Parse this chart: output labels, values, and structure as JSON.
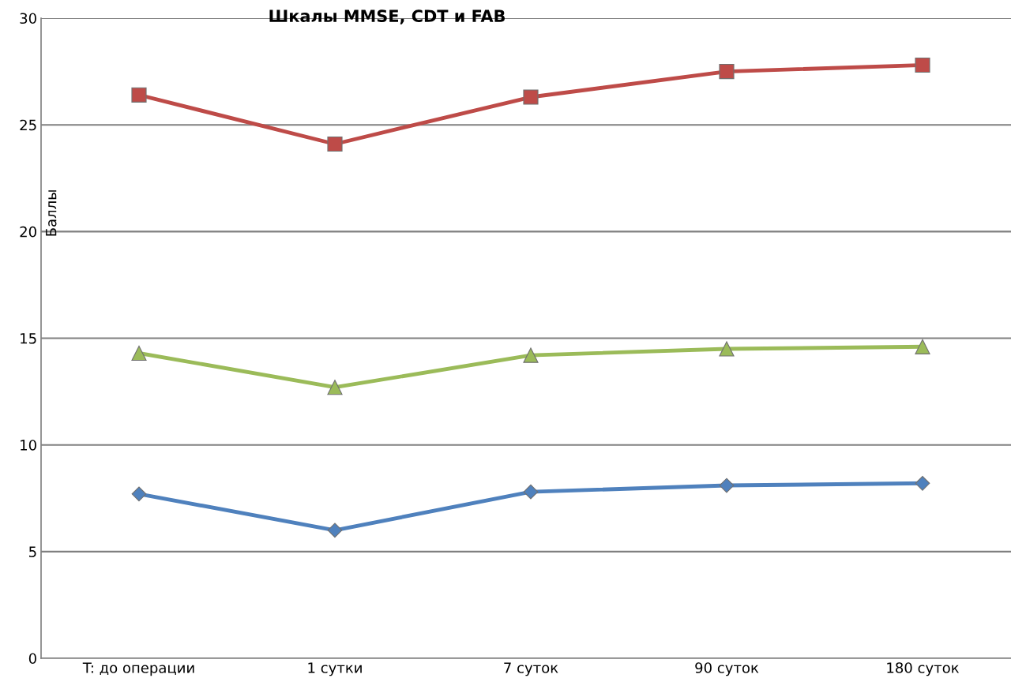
{
  "chart_data": {
    "type": "line",
    "title": "Шкалы MMSE, CDT и FAB",
    "ylabel": "Баллы",
    "categories": [
      "T: до операции",
      "1 сутки",
      "7 суток",
      "90 суток",
      "180 суток"
    ],
    "series": [
      {
        "color": "#be4b48",
        "marker": "square",
        "values": [
          26.4,
          24.1,
          26.3,
          27.5,
          27.8
        ]
      },
      {
        "color": "#9bbb59",
        "marker": "triangle",
        "values": [
          14.3,
          12.7,
          14.2,
          14.5,
          14.6
        ]
      },
      {
        "color": "#4f81bd",
        "marker": "diamond",
        "values": [
          7.7,
          6.0,
          7.8,
          8.1,
          8.2
        ]
      }
    ],
    "ylim": [
      0,
      30
    ],
    "yticks": [
      0,
      5,
      10,
      15,
      20,
      25,
      30
    ],
    "grid": "y",
    "legend": false,
    "line_style": "solid"
  }
}
